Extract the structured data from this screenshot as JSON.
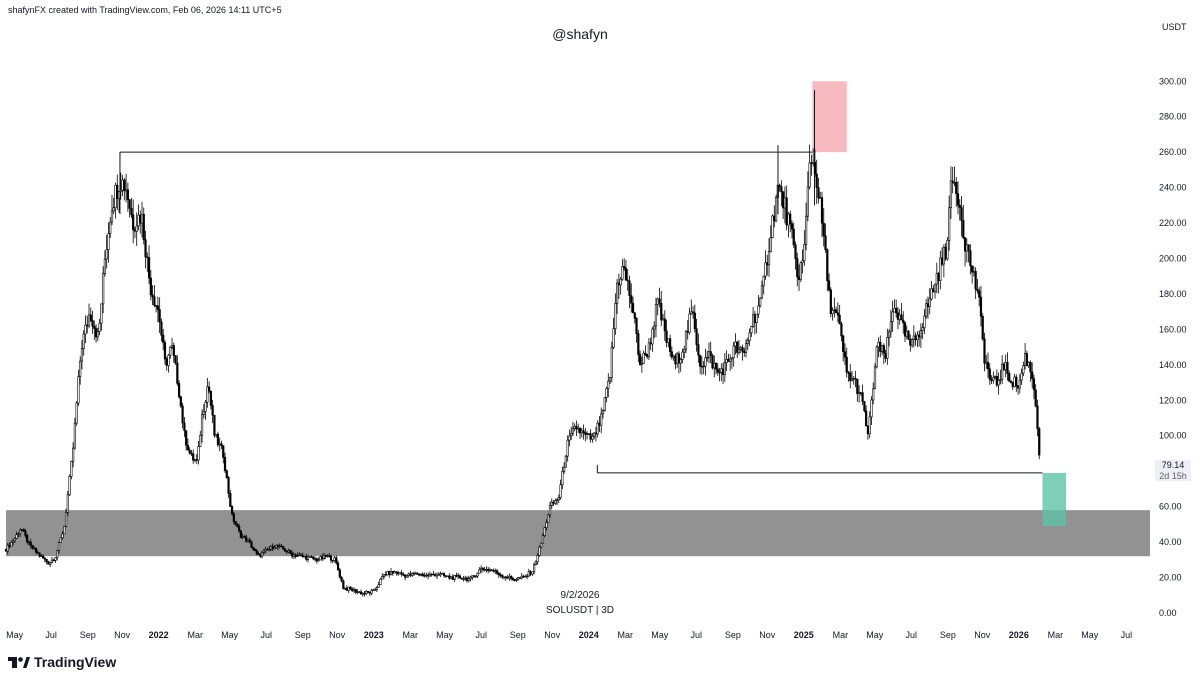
{
  "header": {
    "credit": "shafynFX created with TradingView.com, Feb 06, 2026 14:11 UTC+5",
    "watermark": "@shafyn",
    "unit": "USDT"
  },
  "caption": {
    "date": "9/2/2026",
    "symbol": "SOLUSDT | 3D"
  },
  "last_price": {
    "value": "79.14",
    "countdown": "2d 15h"
  },
  "brand": {
    "name": "TradingView",
    "logo_icon": "tradingview-logo-icon"
  },
  "colors": {
    "candle": "#000000",
    "support_zone": "#7f7f7f",
    "supply_box": "#f7b3ba",
    "demand_box": "#5cc3a3",
    "level_line": "#131722"
  },
  "chart_data": {
    "type": "candlestick",
    "symbol": "SOLUSDT",
    "interval": "3D",
    "y_axis": {
      "ticks": [
        "0.00",
        "20.00",
        "40.00",
        "60.00",
        "80.00",
        "100.00",
        "120.00",
        "140.00",
        "160.00",
        "180.00",
        "200.00",
        "220.00",
        "240.00",
        "260.00",
        "280.00",
        "300.00"
      ],
      "range": [
        -4,
        312
      ]
    },
    "x_axis": {
      "range": [
        2021.29,
        2026.61
      ],
      "ticks": [
        {
          "t": 2021.33,
          "label": "May",
          "major": false
        },
        {
          "t": 2021.5,
          "label": "Jul",
          "major": false
        },
        {
          "t": 2021.67,
          "label": "Sep",
          "major": false
        },
        {
          "t": 2021.83,
          "label": "Nov",
          "major": false
        },
        {
          "t": 2022.0,
          "label": "2022",
          "major": true
        },
        {
          "t": 2022.17,
          "label": "Mar",
          "major": false
        },
        {
          "t": 2022.33,
          "label": "May",
          "major": false
        },
        {
          "t": 2022.5,
          "label": "Jul",
          "major": false
        },
        {
          "t": 2022.67,
          "label": "Sep",
          "major": false
        },
        {
          "t": 2022.83,
          "label": "Nov",
          "major": false
        },
        {
          "t": 2023.0,
          "label": "2023",
          "major": true
        },
        {
          "t": 2023.17,
          "label": "Mar",
          "major": false
        },
        {
          "t": 2023.33,
          "label": "May",
          "major": false
        },
        {
          "t": 2023.5,
          "label": "Jul",
          "major": false
        },
        {
          "t": 2023.67,
          "label": "Sep",
          "major": false
        },
        {
          "t": 2023.83,
          "label": "Nov",
          "major": false
        },
        {
          "t": 2024.0,
          "label": "2024",
          "major": true
        },
        {
          "t": 2024.17,
          "label": "Mar",
          "major": false
        },
        {
          "t": 2024.33,
          "label": "May",
          "major": false
        },
        {
          "t": 2024.5,
          "label": "Jul",
          "major": false
        },
        {
          "t": 2024.67,
          "label": "Sep",
          "major": false
        },
        {
          "t": 2024.83,
          "label": "Nov",
          "major": false
        },
        {
          "t": 2025.0,
          "label": "2025",
          "major": true
        },
        {
          "t": 2025.17,
          "label": "Mar",
          "major": false
        },
        {
          "t": 2025.33,
          "label": "May",
          "major": false
        },
        {
          "t": 2025.5,
          "label": "Jul",
          "major": false
        },
        {
          "t": 2025.67,
          "label": "Sep",
          "major": false
        },
        {
          "t": 2025.83,
          "label": "Nov",
          "major": false
        },
        {
          "t": 2026.0,
          "label": "2026",
          "major": true
        },
        {
          "t": 2026.17,
          "label": "Mar",
          "major": false
        },
        {
          "t": 2026.33,
          "label": "May",
          "major": false
        },
        {
          "t": 2026.5,
          "label": "Jul",
          "major": false
        }
      ]
    },
    "price_path": [
      [
        2021.29,
        36
      ],
      [
        2021.33,
        42
      ],
      [
        2021.36,
        48
      ],
      [
        2021.4,
        38
      ],
      [
        2021.45,
        32
      ],
      [
        2021.49,
        28
      ],
      [
        2021.52,
        32
      ],
      [
        2021.56,
        48
      ],
      [
        2021.6,
        90
      ],
      [
        2021.64,
        150
      ],
      [
        2021.68,
        170
      ],
      [
        2021.72,
        155
      ],
      [
        2021.75,
        200
      ],
      [
        2021.78,
        230
      ],
      [
        2021.82,
        245
      ],
      [
        2021.85,
        240
      ],
      [
        2021.88,
        220
      ],
      [
        2021.92,
        225
      ],
      [
        2021.96,
        185
      ],
      [
        2022.0,
        170
      ],
      [
        2022.03,
        140
      ],
      [
        2022.06,
        150
      ],
      [
        2022.09,
        130
      ],
      [
        2022.12,
        100
      ],
      [
        2022.15,
        88
      ],
      [
        2022.18,
        85
      ],
      [
        2022.2,
        110
      ],
      [
        2022.23,
        130
      ],
      [
        2022.26,
        100
      ],
      [
        2022.3,
        90
      ],
      [
        2022.34,
        55
      ],
      [
        2022.38,
        44
      ],
      [
        2022.42,
        40
      ],
      [
        2022.46,
        32
      ],
      [
        2022.5,
        35
      ],
      [
        2022.54,
        38
      ],
      [
        2022.58,
        36
      ],
      [
        2022.62,
        33
      ],
      [
        2022.66,
        32
      ],
      [
        2022.7,
        31
      ],
      [
        2022.74,
        30
      ],
      [
        2022.78,
        32
      ],
      [
        2022.82,
        30
      ],
      [
        2022.86,
        14
      ],
      [
        2022.9,
        13
      ],
      [
        2022.95,
        11
      ],
      [
        2023.0,
        12
      ],
      [
        2023.05,
        22
      ],
      [
        2023.1,
        23
      ],
      [
        2023.15,
        21
      ],
      [
        2023.2,
        22
      ],
      [
        2023.25,
        21
      ],
      [
        2023.3,
        22
      ],
      [
        2023.35,
        20
      ],
      [
        2023.4,
        20
      ],
      [
        2023.45,
        19
      ],
      [
        2023.5,
        25
      ],
      [
        2023.55,
        24
      ],
      [
        2023.6,
        21
      ],
      [
        2023.65,
        19
      ],
      [
        2023.7,
        20
      ],
      [
        2023.74,
        24
      ],
      [
        2023.78,
        40
      ],
      [
        2023.82,
        60
      ],
      [
        2023.86,
        65
      ],
      [
        2023.9,
        95
      ],
      [
        2023.94,
        105
      ],
      [
        2023.98,
        100
      ],
      [
        2024.02,
        98
      ],
      [
        2024.06,
        110
      ],
      [
        2024.1,
        135
      ],
      [
        2024.13,
        185
      ],
      [
        2024.16,
        195
      ],
      [
        2024.2,
        175
      ],
      [
        2024.24,
        140
      ],
      [
        2024.28,
        150
      ],
      [
        2024.32,
        175
      ],
      [
        2024.36,
        155
      ],
      [
        2024.4,
        140
      ],
      [
        2024.44,
        150
      ],
      [
        2024.48,
        170
      ],
      [
        2024.52,
        140
      ],
      [
        2024.56,
        145
      ],
      [
        2024.6,
        135
      ],
      [
        2024.64,
        140
      ],
      [
        2024.68,
        150
      ],
      [
        2024.72,
        145
      ],
      [
        2024.76,
        165
      ],
      [
        2024.8,
        175
      ],
      [
        2024.84,
        210
      ],
      [
        2024.88,
        240
      ],
      [
        2024.91,
        230
      ],
      [
        2024.94,
        215
      ],
      [
        2024.97,
        190
      ],
      [
        2025.0,
        200
      ],
      [
        2025.03,
        260
      ],
      [
        2025.06,
        245
      ],
      [
        2025.09,
        215
      ],
      [
        2025.12,
        175
      ],
      [
        2025.16,
        165
      ],
      [
        2025.2,
        135
      ],
      [
        2025.24,
        130
      ],
      [
        2025.27,
        120
      ],
      [
        2025.3,
        100
      ],
      [
        2025.34,
        150
      ],
      [
        2025.38,
        145
      ],
      [
        2025.42,
        175
      ],
      [
        2025.46,
        160
      ],
      [
        2025.5,
        150
      ],
      [
        2025.54,
        160
      ],
      [
        2025.58,
        175
      ],
      [
        2025.62,
        190
      ],
      [
        2025.66,
        205
      ],
      [
        2025.69,
        245
      ],
      [
        2025.72,
        235
      ],
      [
        2025.75,
        210
      ],
      [
        2025.78,
        195
      ],
      [
        2025.81,
        180
      ],
      [
        2025.84,
        145
      ],
      [
        2025.87,
        130
      ],
      [
        2025.9,
        130
      ],
      [
        2025.93,
        140
      ],
      [
        2025.96,
        132
      ],
      [
        2026.0,
        128
      ],
      [
        2026.03,
        145
      ],
      [
        2026.06,
        135
      ],
      [
        2026.08,
        118
      ],
      [
        2026.1,
        80
      ]
    ],
    "overlays": {
      "support_zone": {
        "y_low": 32,
        "y_high": 58,
        "t_start": 2021.29,
        "t_end": 2026.61
      },
      "supply_box": {
        "t_start": 2025.04,
        "t_end": 2025.2,
        "y_low": 260,
        "y_high": 300
      },
      "demand_box": {
        "t_start": 2026.11,
        "t_end": 2026.22,
        "y_low": 49,
        "y_high": 79
      },
      "resistance_line": {
        "t_start": 2021.82,
        "t_end": 2025.04,
        "y": 260
      },
      "support_line": {
        "t_start": 2024.04,
        "t_end": 2026.11,
        "y": 79
      }
    }
  }
}
